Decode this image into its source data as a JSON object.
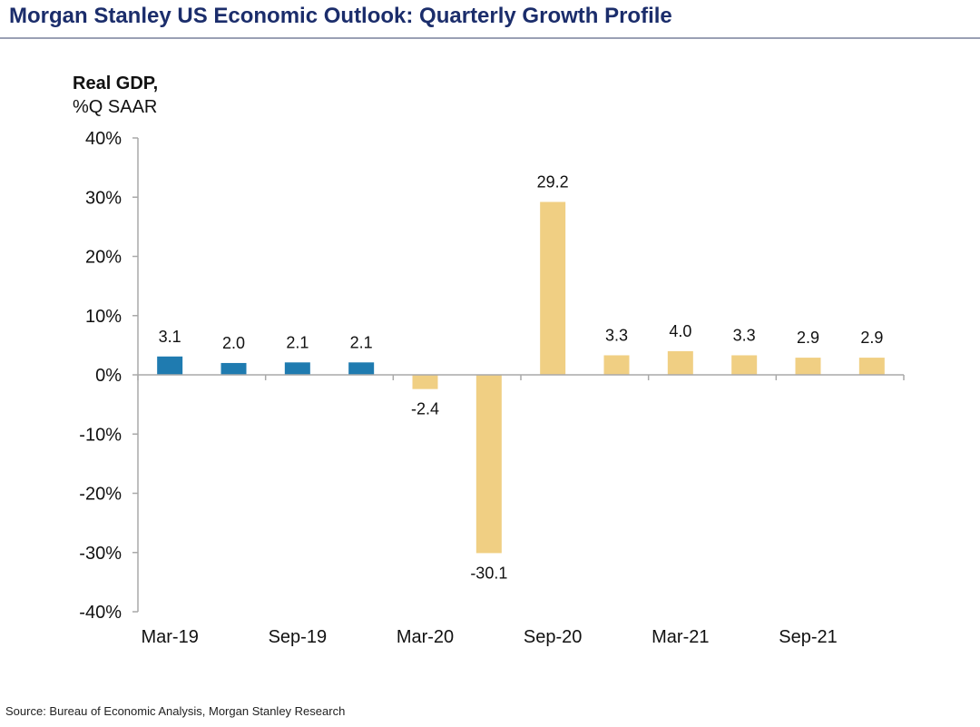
{
  "header": {
    "title": "Morgan Stanley US Economic Outlook: Quarterly Growth Profile"
  },
  "footer": {
    "source": "Source: Bureau of Economic Analysis, Morgan Stanley Research"
  },
  "chart_data": {
    "type": "bar",
    "ylabel_line1": "Real GDP,",
    "ylabel_line2": "%Q SAAR",
    "ylim": [
      -40,
      40
    ],
    "yticks": [
      40,
      30,
      20,
      10,
      0,
      -10,
      -20,
      -30,
      -40
    ],
    "ytick_labels": [
      "40%",
      "30%",
      "20%",
      "10%",
      "0%",
      "-10%",
      "-20%",
      "-30%",
      "-40%"
    ],
    "categories": [
      "Mar-19",
      "Jun-19",
      "Sep-19",
      "Dec-19",
      "Mar-20",
      "Jun-20",
      "Sep-20",
      "Dec-20",
      "Mar-21",
      "Jun-21",
      "Sep-21",
      "Dec-21"
    ],
    "xtick_labels_shown": [
      "Mar-19",
      "",
      "Sep-19",
      "",
      "Mar-20",
      "",
      "Sep-20",
      "",
      "Mar-21",
      "",
      "Sep-21",
      ""
    ],
    "values": [
      3.1,
      2.0,
      2.1,
      2.1,
      -2.4,
      -30.1,
      29.2,
      3.3,
      4.0,
      3.3,
      2.9,
      2.9
    ],
    "value_labels": [
      "3.1",
      "2.0",
      "2.1",
      "2.1",
      "-2.4",
      "-30.1",
      "29.2",
      "3.3",
      "4.0",
      "3.3",
      "2.9",
      "2.9"
    ],
    "bar_kind": [
      "actual",
      "actual",
      "actual",
      "actual",
      "forecast",
      "forecast",
      "forecast",
      "forecast",
      "forecast",
      "forecast",
      "forecast",
      "forecast"
    ],
    "colors": {
      "actual": "#1f7bb0",
      "forecast": "#f0cf83",
      "axis": "#a9a9a9"
    },
    "grid": false,
    "legend": "none"
  }
}
